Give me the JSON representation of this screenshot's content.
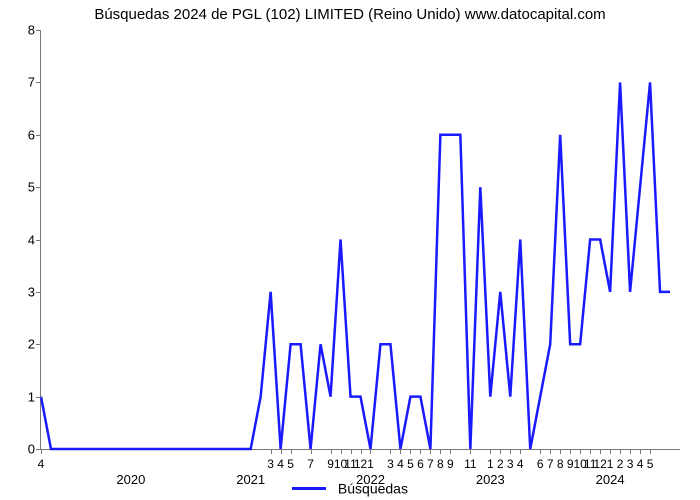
{
  "chart": {
    "type": "line",
    "title": "Búsquedas 2024 de PGL (102) LIMITED (Reino Unido) www.datocapital.com",
    "title_fontsize": 15,
    "background_color": "#ffffff",
    "axis_color": "#777777",
    "tick_label_color": "#000000",
    "tick_label_fontsize": 13,
    "minor_tick_label_fontsize": 12,
    "line_color": "#1a1aff",
    "line_width": 2.5,
    "ylim": [
      0,
      8
    ],
    "yticks": [
      0,
      1,
      2,
      3,
      4,
      5,
      6,
      7,
      8
    ],
    "x_domain": [
      0,
      64
    ],
    "major_years": [
      {
        "label": "2020",
        "x": 9
      },
      {
        "label": "2021",
        "x": 21
      },
      {
        "label": "2022",
        "x": 33
      },
      {
        "label": "2023",
        "x": 45
      },
      {
        "label": "2024",
        "x": 57
      }
    ],
    "minor_ticks": [
      {
        "label": "4",
        "x": 0
      },
      {
        "label": "3",
        "x": 23
      },
      {
        "label": "4",
        "x": 24
      },
      {
        "label": "5",
        "x": 25
      },
      {
        "label": "7",
        "x": 27
      },
      {
        "label": "9",
        "x": 29
      },
      {
        "label": "10",
        "x": 30
      },
      {
        "label": "11",
        "x": 31
      },
      {
        "label": "12",
        "x": 32
      },
      {
        "label": "1",
        "x": 33
      },
      {
        "label": "3",
        "x": 35
      },
      {
        "label": "4",
        "x": 36
      },
      {
        "label": "5",
        "x": 37
      },
      {
        "label": "6",
        "x": 38
      },
      {
        "label": "7",
        "x": 39
      },
      {
        "label": "8",
        "x": 40
      },
      {
        "label": "9",
        "x": 41
      },
      {
        "label": "11",
        "x": 43
      },
      {
        "label": "1",
        "x": 45
      },
      {
        "label": "2",
        "x": 46
      },
      {
        "label": "3",
        "x": 47
      },
      {
        "label": "4",
        "x": 48
      },
      {
        "label": "6",
        "x": 50
      },
      {
        "label": "7",
        "x": 51
      },
      {
        "label": "8",
        "x": 52
      },
      {
        "label": "9",
        "x": 53
      },
      {
        "label": "10",
        "x": 54
      },
      {
        "label": "11",
        "x": 55
      },
      {
        "label": "12",
        "x": 56
      },
      {
        "label": "1",
        "x": 57
      },
      {
        "label": "2",
        "x": 58
      },
      {
        "label": "3",
        "x": 59
      },
      {
        "label": "4",
        "x": 60
      },
      {
        "label": "5",
        "x": 61
      }
    ],
    "series": [
      {
        "x": 0,
        "y": 1.0
      },
      {
        "x": 1,
        "y": 0.0
      },
      {
        "x": 21,
        "y": 0.0
      },
      {
        "x": 22,
        "y": 1.0
      },
      {
        "x": 23,
        "y": 3.0
      },
      {
        "x": 24,
        "y": 0.0
      },
      {
        "x": 25,
        "y": 2.0
      },
      {
        "x": 26,
        "y": 2.0
      },
      {
        "x": 27,
        "y": 0.0
      },
      {
        "x": 28,
        "y": 2.0
      },
      {
        "x": 29,
        "y": 1.0
      },
      {
        "x": 30,
        "y": 4.0
      },
      {
        "x": 31,
        "y": 1.0
      },
      {
        "x": 32,
        "y": 1.0
      },
      {
        "x": 33,
        "y": 0.0
      },
      {
        "x": 34,
        "y": 2.0
      },
      {
        "x": 35,
        "y": 2.0
      },
      {
        "x": 36,
        "y": 0.0
      },
      {
        "x": 37,
        "y": 1.0
      },
      {
        "x": 38,
        "y": 1.0
      },
      {
        "x": 39,
        "y": 0.0
      },
      {
        "x": 40,
        "y": 6.0
      },
      {
        "x": 41,
        "y": 6.0
      },
      {
        "x": 42,
        "y": 6.0
      },
      {
        "x": 43,
        "y": 0.0
      },
      {
        "x": 44,
        "y": 5.0
      },
      {
        "x": 45,
        "y": 1.0
      },
      {
        "x": 46,
        "y": 3.0
      },
      {
        "x": 47,
        "y": 1.0
      },
      {
        "x": 48,
        "y": 4.0
      },
      {
        "x": 49,
        "y": 0.0
      },
      {
        "x": 50,
        "y": 1.0
      },
      {
        "x": 51,
        "y": 2.0
      },
      {
        "x": 52,
        "y": 6.0
      },
      {
        "x": 53,
        "y": 2.0
      },
      {
        "x": 54,
        "y": 2.0
      },
      {
        "x": 55,
        "y": 4.0
      },
      {
        "x": 56,
        "y": 4.0
      },
      {
        "x": 57,
        "y": 3.0
      },
      {
        "x": 58,
        "y": 7.0
      },
      {
        "x": 59,
        "y": 3.0
      },
      {
        "x": 60,
        "y": 5.0
      },
      {
        "x": 61,
        "y": 7.0
      },
      {
        "x": 62,
        "y": 3.0
      },
      {
        "x": 63,
        "y": 3.0
      }
    ],
    "legend": {
      "label": "Búsquedas",
      "color": "#1a1aff",
      "fontsize": 14
    }
  }
}
